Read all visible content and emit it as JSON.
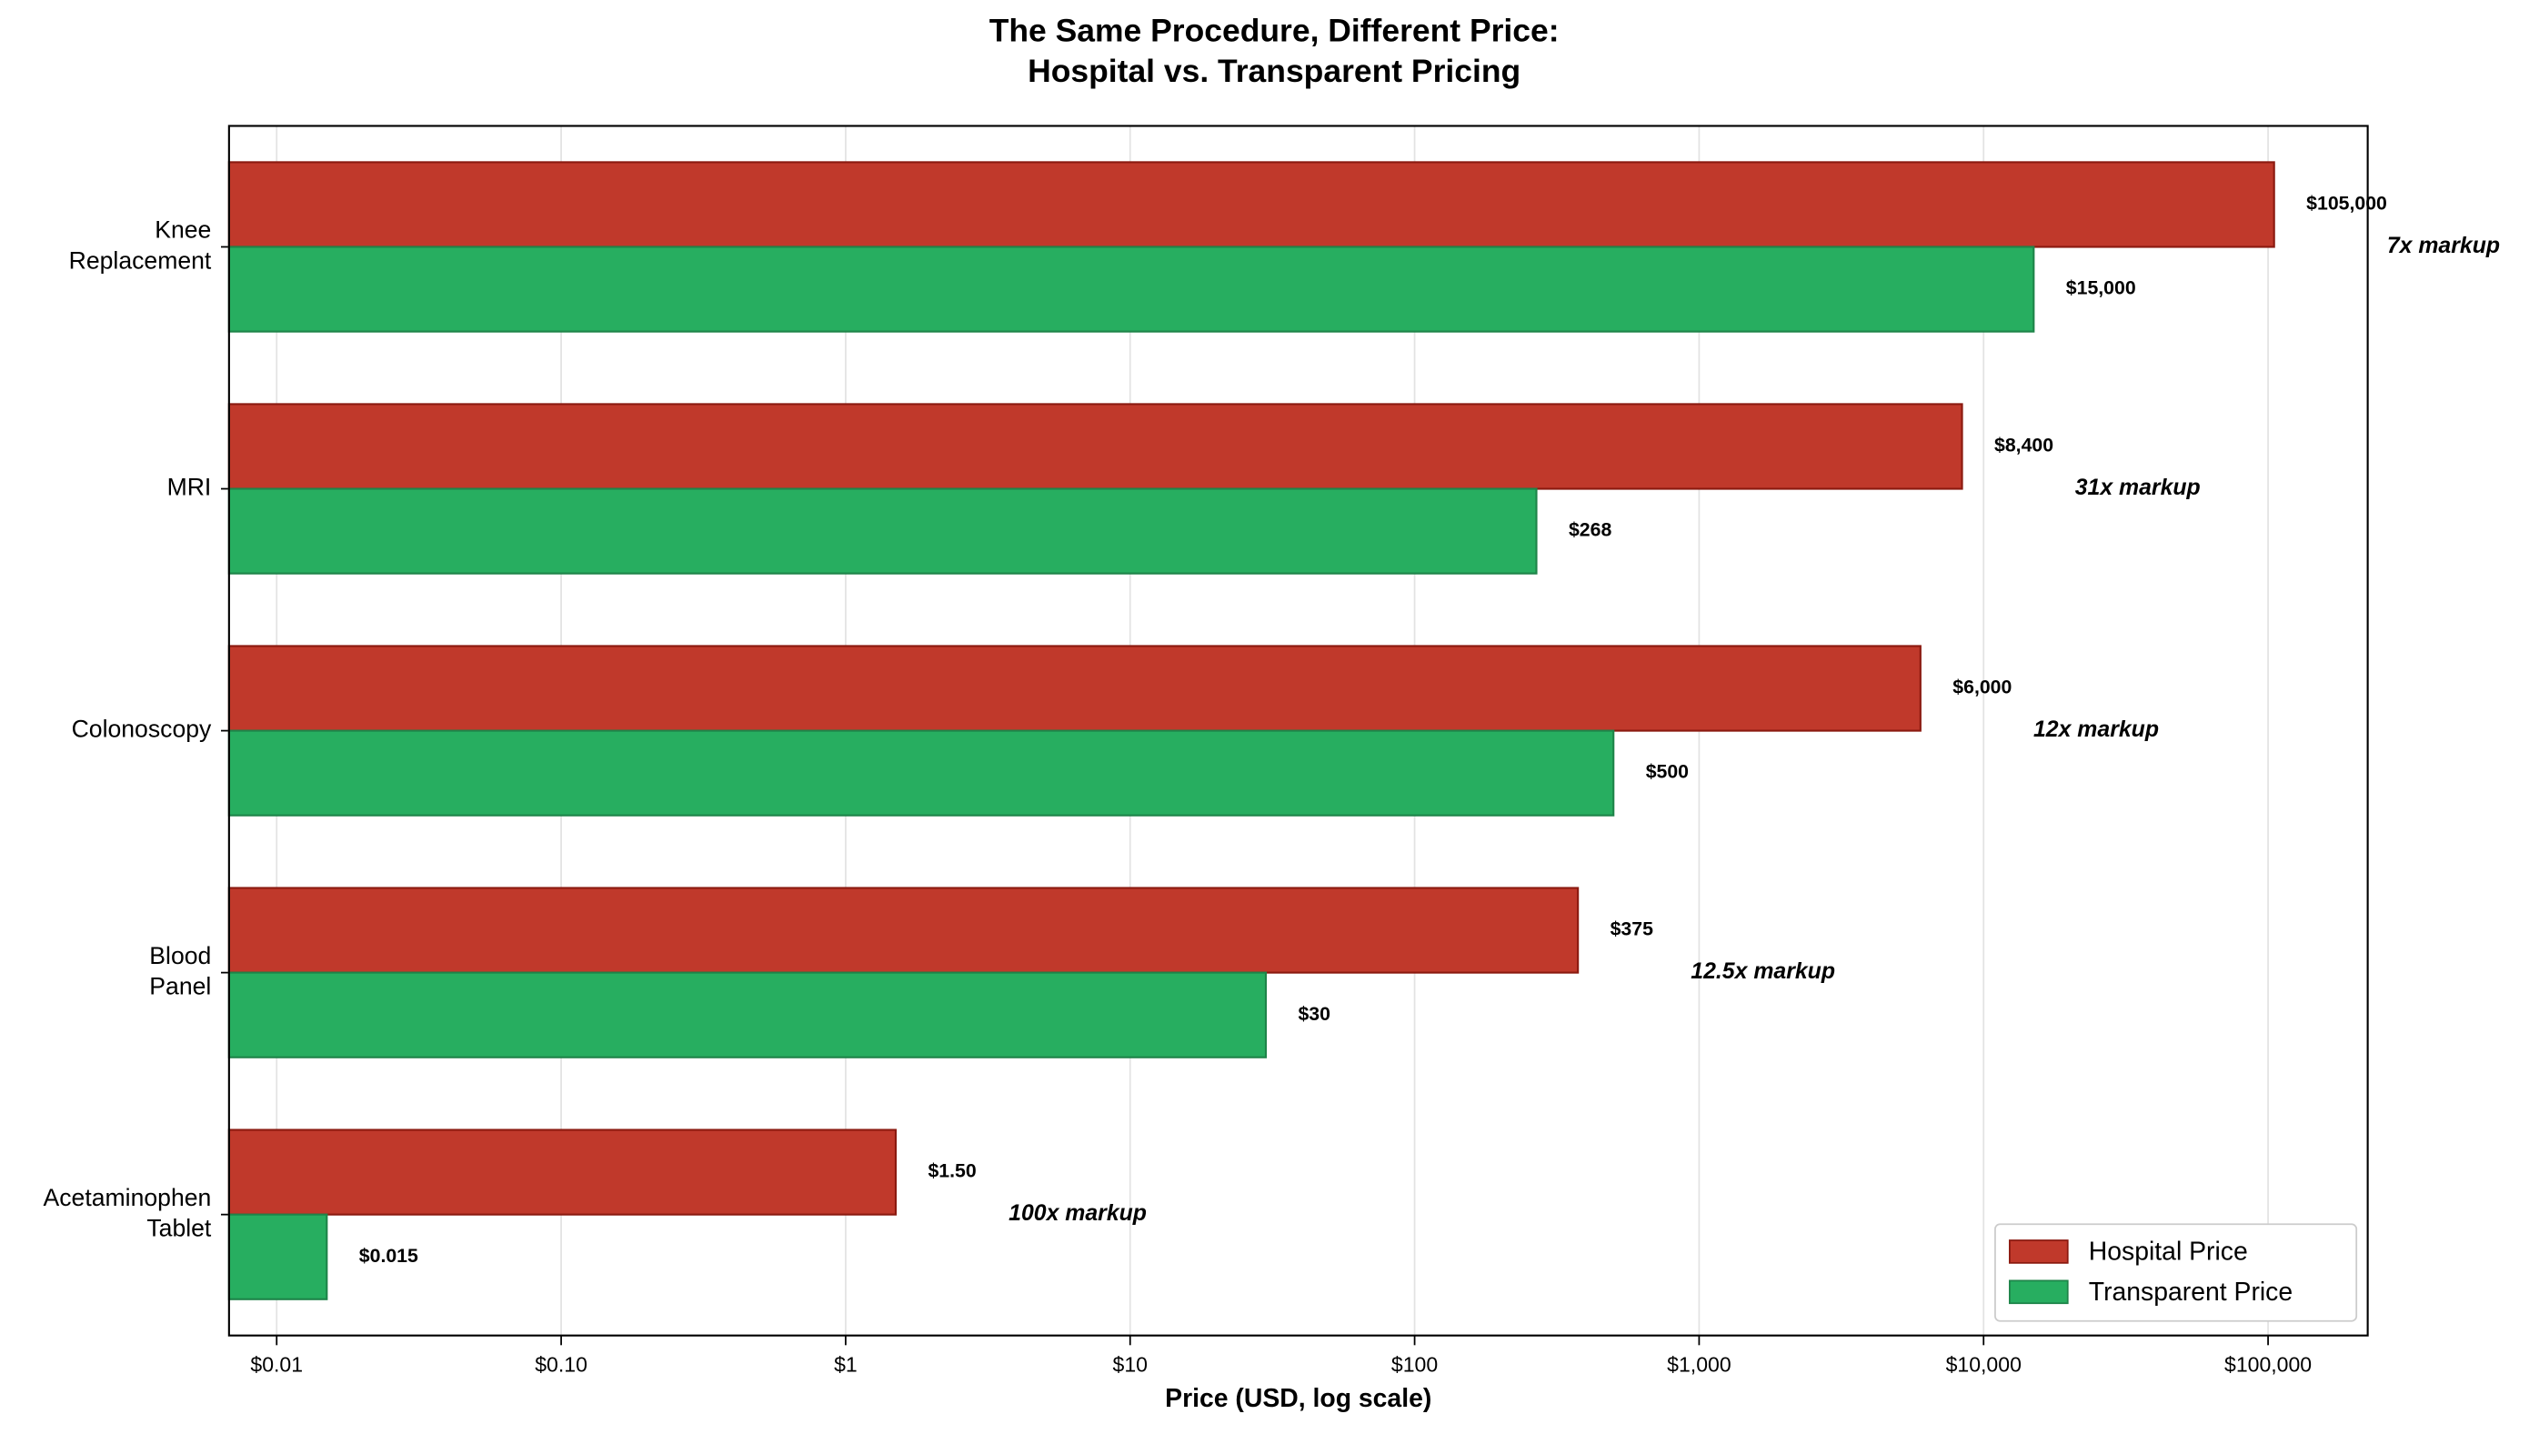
{
  "chart_data": {
    "type": "barh",
    "title": "The Same Procedure, Different Price:\nHospital vs. Transparent Pricing",
    "x_label": "Price (USD, log scale)",
    "categories": [
      "Knee\nReplacement",
      "MRI",
      "Colonoscopy",
      "Blood\nPanel",
      "Acetaminophen\nTablet"
    ],
    "series": [
      {
        "name": "Hospital Price",
        "color": "#c0392b",
        "edge": "#8b1a10",
        "label_color": "#8b0000",
        "values": [
          105000,
          8400,
          6000,
          375,
          1.5
        ],
        "value_labels": [
          "$105,000",
          "$8,400",
          "$6,000",
          "$375",
          "$1.50"
        ]
      },
      {
        "name": "Transparent Price",
        "color": "#27ae60",
        "edge": "#1e8449",
        "label_color": "#1e8449",
        "values": [
          15000,
          268,
          500,
          30,
          0.015
        ],
        "value_labels": [
          "$15,000",
          "$268",
          "$500",
          "$30",
          "$0.015"
        ]
      }
    ],
    "annotations": [
      "7x markup",
      "31x markup",
      "12x markup",
      "12.5x markup",
      "100x markup"
    ],
    "annotation_color": "#c0392b",
    "xscale": "log",
    "xlim": [
      0.0068,
      224000
    ],
    "xticks": [
      {
        "value": 0.01,
        "label": "$0.01"
      },
      {
        "value": 0.1,
        "label": "$0.10"
      },
      {
        "value": 1,
        "label": "$1"
      },
      {
        "value": 10,
        "label": "$10"
      },
      {
        "value": 100,
        "label": "$100"
      },
      {
        "value": 1000,
        "label": "$1,000"
      },
      {
        "value": 10000,
        "label": "$10,000"
      },
      {
        "value": 100000,
        "label": "$100,000"
      }
    ],
    "grid": true,
    "legend": "lower right"
  }
}
